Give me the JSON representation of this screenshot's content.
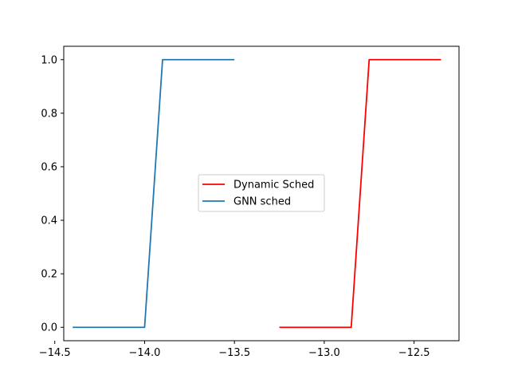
{
  "chart_data": {
    "type": "line",
    "title": "",
    "xlabel": "",
    "ylabel": "",
    "xlim": [
      -14.45,
      -12.25
    ],
    "ylim": [
      -0.05,
      1.05
    ],
    "x_ticks": [
      -14.5,
      -14.0,
      -13.5,
      -13.0,
      -12.5
    ],
    "x_tick_labels": [
      "−14.5",
      "−14.0",
      "−13.5",
      "−13.0",
      "−12.5"
    ],
    "y_ticks": [
      0.0,
      0.2,
      0.4,
      0.6,
      0.8,
      1.0
    ],
    "y_tick_labels": [
      "0.0",
      "0.2",
      "0.4",
      "0.6",
      "0.8",
      "1.0"
    ],
    "grid": false,
    "legend_position": "center",
    "series": [
      {
        "name": "Dynamic Sched",
        "color": "#ff0000",
        "x": [
          -13.25,
          -12.85,
          -12.75,
          -12.35
        ],
        "y": [
          0.0,
          0.0,
          1.0,
          1.0
        ]
      },
      {
        "name": "GNN sched",
        "color": "#1f77b4",
        "x": [
          -14.4,
          -14.0,
          -13.9,
          -13.5
        ],
        "y": [
          0.0,
          0.0,
          1.0,
          1.0
        ]
      }
    ]
  }
}
